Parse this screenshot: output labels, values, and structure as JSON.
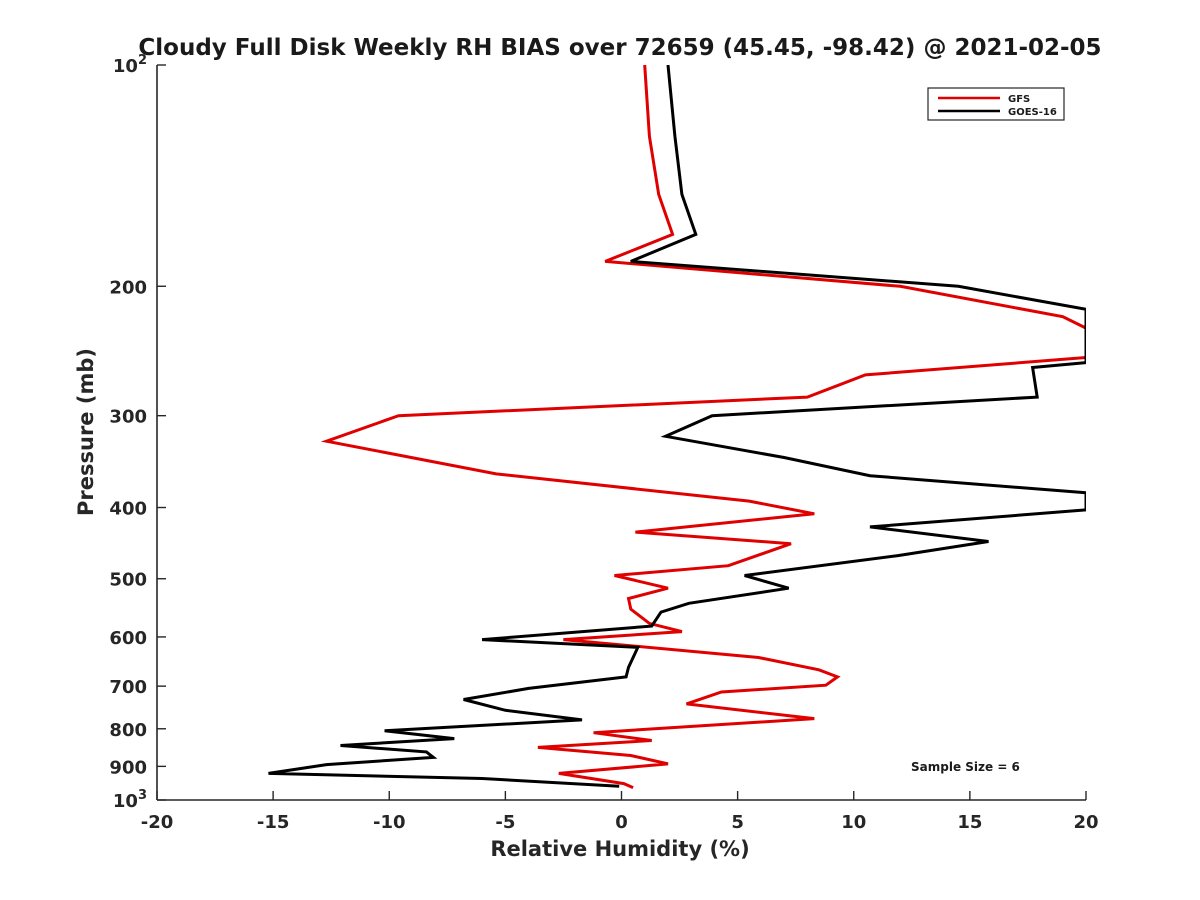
{
  "chart_data": {
    "type": "line",
    "title": "Cloudy Full Disk Weekly RH BIAS over 72659 (45.45, -98.42) @ 2021-02-05",
    "xlabel": "Relative Humidity (%)",
    "ylabel": "Pressure (mb)",
    "xlim": [
      -20,
      20
    ],
    "ylim": [
      100,
      1000
    ],
    "yscale": "log",
    "y_reversed": true,
    "xticks": [
      -20,
      -15,
      -10,
      -5,
      0,
      5,
      10,
      15,
      20
    ],
    "xtick_labels": [
      "-20",
      "-15",
      "-10",
      "-5",
      "0",
      "5",
      "10",
      "15",
      "20"
    ],
    "yticks": [
      100,
      200,
      300,
      400,
      500,
      600,
      700,
      800,
      900,
      1000
    ],
    "ytick_labels": [
      {
        "base": "10",
        "exp": "2"
      },
      {
        "base": "200",
        "exp": ""
      },
      {
        "base": "300",
        "exp": ""
      },
      {
        "base": "400",
        "exp": ""
      },
      {
        "base": "500",
        "exp": ""
      },
      {
        "base": "600",
        "exp": ""
      },
      {
        "base": "700",
        "exp": ""
      },
      {
        "base": "800",
        "exp": ""
      },
      {
        "base": "900",
        "exp": ""
      },
      {
        "base": "10",
        "exp": "3"
      }
    ],
    "grid": false,
    "legend_position": "top-right",
    "annotation": "Sample Size = 6",
    "series": [
      {
        "name": "GFS",
        "color": "#e00000",
        "points": [
          [
            1.0,
            100
          ],
          [
            1.2,
            125
          ],
          [
            1.6,
            150
          ],
          [
            2.2,
            170
          ],
          [
            -0.7,
            185
          ],
          [
            12,
            200
          ],
          [
            19,
            220
          ],
          [
            20,
            228
          ],
          [
            20,
            250
          ],
          [
            10.5,
            264
          ],
          [
            8,
            283
          ],
          [
            -9.6,
            300
          ],
          [
            -12.7,
            325
          ],
          [
            -5.4,
            360
          ],
          [
            5.5,
            392
          ],
          [
            8.3,
            408
          ],
          [
            0.6,
            432
          ],
          [
            7.3,
            448
          ],
          [
            4.6,
            480
          ],
          [
            -0.3,
            495
          ],
          [
            2.0,
            515
          ],
          [
            0.3,
            532
          ],
          [
            0.4,
            550
          ],
          [
            1.2,
            575
          ],
          [
            2.6,
            590
          ],
          [
            -2.5,
            605
          ],
          [
            5.9,
            640
          ],
          [
            8.5,
            665
          ],
          [
            9.3,
            680
          ],
          [
            8.8,
            698
          ],
          [
            4.3,
            713
          ],
          [
            2.8,
            740
          ],
          [
            8.3,
            775
          ],
          [
            -1.2,
            810
          ],
          [
            1.3,
            830
          ],
          [
            -3.6,
            848
          ],
          [
            0.4,
            870
          ],
          [
            2.0,
            893
          ],
          [
            -2.7,
            920
          ],
          [
            0.1,
            950
          ],
          [
            0.5,
            962
          ]
        ]
      },
      {
        "name": "GOES-16",
        "color": "#000000",
        "points": [
          [
            2.0,
            100
          ],
          [
            2.3,
            125
          ],
          [
            2.6,
            150
          ],
          [
            3.2,
            170
          ],
          [
            0.4,
            185
          ],
          [
            14.5,
            200
          ],
          [
            20,
            215
          ],
          [
            20,
            254
          ],
          [
            17.7,
            258
          ],
          [
            17.9,
            283
          ],
          [
            3.9,
            300
          ],
          [
            1.9,
            320
          ],
          [
            7.0,
            342
          ],
          [
            10.7,
            362
          ],
          [
            20,
            382
          ],
          [
            20,
            403
          ],
          [
            10.7,
            425
          ],
          [
            15.8,
            445
          ],
          [
            11.9,
            465
          ],
          [
            5.3,
            495
          ],
          [
            7.2,
            515
          ],
          [
            2.9,
            540
          ],
          [
            1.7,
            555
          ],
          [
            1.3,
            580
          ],
          [
            -6.0,
            605
          ],
          [
            0.7,
            620
          ],
          [
            0.3,
            660
          ],
          [
            0.2,
            680
          ],
          [
            -4.0,
            705
          ],
          [
            -6.8,
            730
          ],
          [
            -5.0,
            755
          ],
          [
            -1.7,
            778
          ],
          [
            -10.2,
            805
          ],
          [
            -7.2,
            825
          ],
          [
            -12.1,
            843
          ],
          [
            -8.4,
            860
          ],
          [
            -8.1,
            875
          ],
          [
            -12.7,
            895
          ],
          [
            -15.2,
            920
          ],
          [
            -6.0,
            935
          ],
          [
            -0.1,
            958
          ]
        ]
      }
    ]
  }
}
